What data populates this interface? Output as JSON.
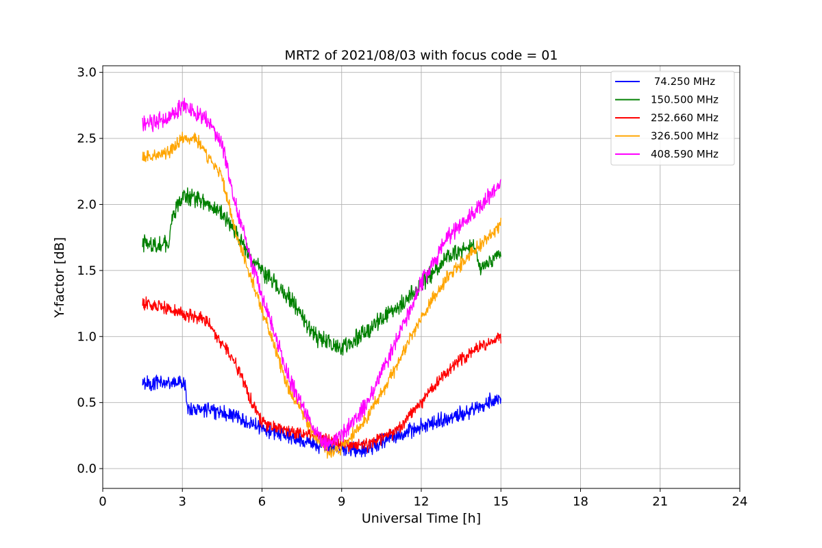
{
  "chart_data": {
    "type": "line",
    "title": "MRT2 of 2021/08/03 with focus code = 01",
    "xlabel": "Universal Time [h]",
    "ylabel": "Y-factor [dB]",
    "xlim": [
      0,
      24
    ],
    "ylim": [
      -0.15,
      3.05
    ],
    "xticks": [
      0,
      3,
      6,
      9,
      12,
      15,
      18,
      21,
      24
    ],
    "yticks": [
      0.0,
      0.5,
      1.0,
      1.5,
      2.0,
      2.5,
      3.0
    ],
    "xtick_labels": [
      "0",
      "3",
      "6",
      "9",
      "12",
      "15",
      "18",
      "21",
      "24"
    ],
    "ytick_labels": [
      "0.0",
      "0.5",
      "1.0",
      "1.5",
      "2.0",
      "2.5",
      "3.0"
    ],
    "grid": true,
    "legend_position": "top-right",
    "series": [
      {
        "name": " 74.250 MHz",
        "color": "#0000ff",
        "noise": 0.07,
        "x": [
          1.5,
          2.5,
          3.1,
          3.2,
          4.0,
          5.0,
          6.0,
          7.0,
          8.0,
          9.0,
          10.0,
          11.0,
          12.0,
          13.0,
          14.0,
          15.0
        ],
        "y": [
          0.65,
          0.65,
          0.65,
          0.45,
          0.45,
          0.4,
          0.3,
          0.25,
          0.18,
          0.15,
          0.15,
          0.25,
          0.32,
          0.38,
          0.45,
          0.55
        ]
      },
      {
        "name": "150.500 MHz",
        "color": "#008000",
        "noise": 0.08,
        "x": [
          1.5,
          2.5,
          2.6,
          3.0,
          3.5,
          4.0,
          4.5,
          5.0,
          5.5,
          6.0,
          6.5,
          7.0,
          8.0,
          9.0,
          10.0,
          11.0,
          12.0,
          13.0,
          14.0,
          14.2,
          15.0
        ],
        "y": [
          1.7,
          1.7,
          1.9,
          2.05,
          2.05,
          2.0,
          1.92,
          1.8,
          1.62,
          1.5,
          1.4,
          1.3,
          1.0,
          0.92,
          1.05,
          1.2,
          1.4,
          1.6,
          1.7,
          1.5,
          1.65
        ]
      },
      {
        "name": "252.660 MHz",
        "color": "#ff0000",
        "noise": 0.06,
        "x": [
          1.5,
          2.5,
          3.5,
          4.0,
          4.5,
          5.0,
          5.5,
          6.0,
          7.0,
          8.0,
          9.0,
          10.0,
          11.0,
          12.0,
          13.0,
          14.0,
          15.0
        ],
        "y": [
          1.25,
          1.2,
          1.15,
          1.1,
          0.95,
          0.8,
          0.55,
          0.35,
          0.28,
          0.25,
          0.18,
          0.18,
          0.28,
          0.5,
          0.75,
          0.9,
          1.0
        ]
      },
      {
        "name": "326.500 MHz",
        "color": "#ffa500",
        "noise": 0.06,
        "x": [
          1.5,
          2.5,
          3.0,
          3.5,
          4.0,
          4.5,
          5.0,
          6.0,
          7.0,
          8.0,
          8.5,
          9.0,
          10.0,
          11.0,
          12.0,
          13.0,
          14.0,
          15.0
        ],
        "y": [
          2.35,
          2.4,
          2.5,
          2.5,
          2.35,
          2.2,
          1.8,
          1.2,
          0.6,
          0.25,
          0.12,
          0.15,
          0.4,
          0.75,
          1.15,
          1.45,
          1.65,
          1.85
        ]
      },
      {
        "name": "408.590 MHz",
        "color": "#ff00ff",
        "noise": 0.08,
        "x": [
          1.5,
          2.5,
          3.0,
          3.5,
          4.0,
          4.5,
          5.0,
          6.0,
          7.0,
          8.0,
          8.5,
          9.0,
          10.0,
          11.0,
          12.0,
          13.0,
          14.0,
          15.0
        ],
        "y": [
          2.6,
          2.65,
          2.75,
          2.7,
          2.62,
          2.45,
          2.0,
          1.3,
          0.7,
          0.28,
          0.18,
          0.25,
          0.5,
          0.95,
          1.4,
          1.75,
          1.95,
          2.15
        ]
      }
    ]
  }
}
